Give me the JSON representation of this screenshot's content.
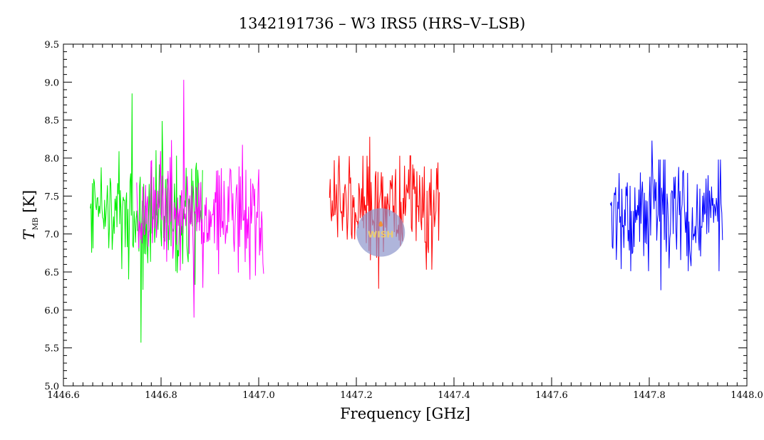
{
  "chart_data": {
    "type": "line",
    "title": "1342191736 – W3 IRS5 (HRS–V–LSB)",
    "xlabel": "Frequency [GHz]",
    "ylabel": {
      "symbol": "T",
      "subscript": "MB",
      "unit": "[K]"
    },
    "xlim": [
      1446.6,
      1448.0
    ],
    "ylim": [
      5.0,
      9.5
    ],
    "xticks": [
      "1446.6",
      "1446.8",
      "1447.0",
      "1447.2",
      "1447.4",
      "1447.6",
      "1447.8",
      "1448.0"
    ],
    "yticks": [
      "5.0",
      "5.5",
      "6.0",
      "6.5",
      "7.0",
      "7.5",
      "8.0",
      "8.5",
      "9.0",
      "9.5"
    ],
    "grid": false,
    "legend": "none",
    "series": [
      {
        "color": "#00ee00",
        "x_range": [
          1446.655,
          1446.885
        ],
        "mean": 7.25,
        "min": 5.57,
        "max": 8.85
      },
      {
        "color": "#ff00ff",
        "x_range": [
          1446.75,
          1447.01
        ],
        "mean": 7.25,
        "min": 5.9,
        "max": 9.03
      },
      {
        "color": "#ff0000",
        "x_range": [
          1447.145,
          1447.37
        ],
        "mean": 7.3,
        "min": 6.28,
        "max": 8.28
      },
      {
        "color": "#0000ff",
        "x_range": [
          1447.72,
          1447.95
        ],
        "mean": 7.3,
        "min": 6.26,
        "max": 8.23
      }
    ],
    "watermark": {
      "label": "WISH",
      "x": 1447.25,
      "y": 7.02
    }
  }
}
